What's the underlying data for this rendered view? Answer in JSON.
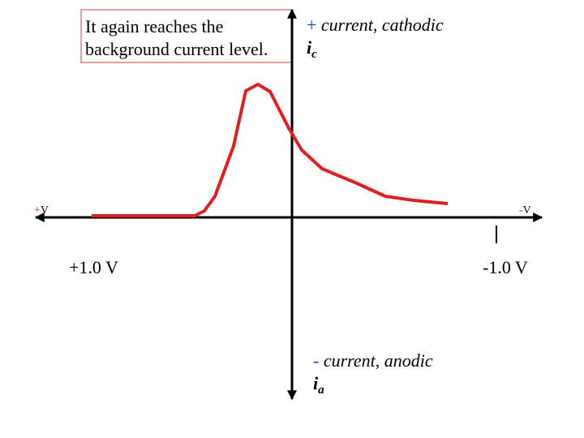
{
  "annotation": {
    "lines": [
      "It again reaches the",
      "background current level."
    ]
  },
  "cathodic_label": {
    "sign": "+",
    "text": "current, cathodic",
    "symbol": "i",
    "subscript": "c"
  },
  "anodic_label": {
    "sign": "-",
    "text": "current, anodic",
    "symbol": "i",
    "subscript": "a"
  },
  "x_axis_ends": {
    "left": {
      "sign": "+",
      "letter": "V"
    },
    "right": {
      "sign": "-",
      "letter": "V"
    }
  },
  "tick_labels": {
    "left": "+1.0 V",
    "right": "-1.0 V"
  }
}
